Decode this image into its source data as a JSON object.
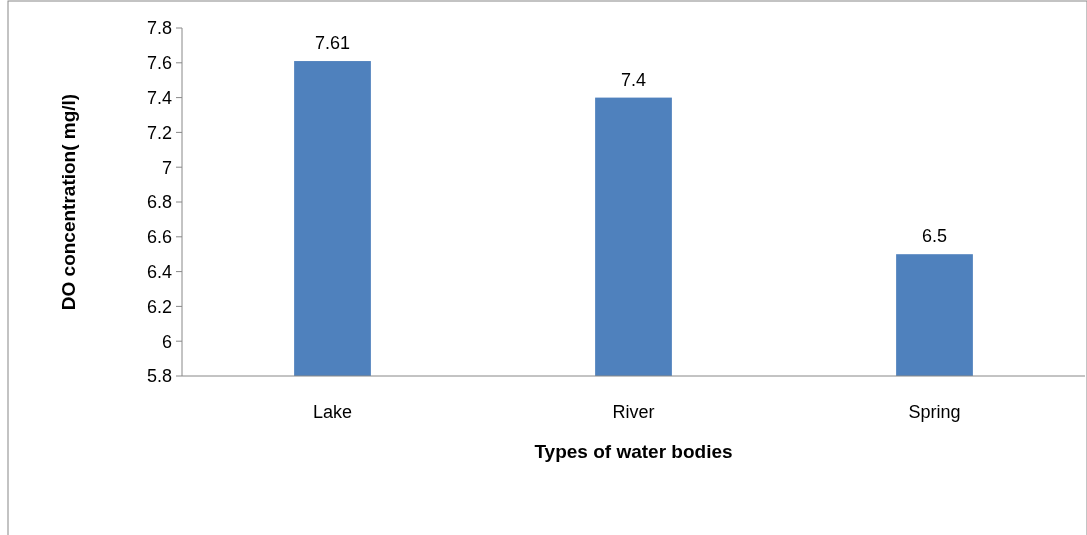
{
  "chart_data": {
    "type": "bar",
    "xlabel": "Types of water bodies",
    "ylabel": "DO concentration( mg/l)",
    "categories": [
      "Lake",
      "River",
      "Spring"
    ],
    "values": [
      7.61,
      7.4,
      6.5
    ],
    "color": "#4f81bd",
    "ylim": [
      5.8,
      7.8
    ],
    "yticks": [
      5.8,
      6,
      6.2,
      6.4,
      6.6,
      6.8,
      7,
      7.2,
      7.4,
      7.6,
      7.8
    ],
    "data_labels": true,
    "grid": false
  }
}
